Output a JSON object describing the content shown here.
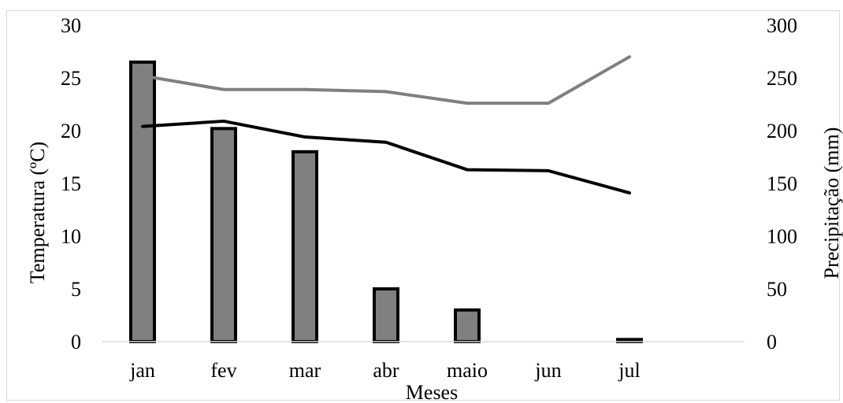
{
  "chart_data": {
    "type": "bar",
    "categories": [
      "jan",
      "fev",
      "mar",
      "abr",
      "maio",
      "jun",
      "jul"
    ],
    "xlabel": "Meses",
    "ylabel": "Temperatura (ºC)",
    "y2label": "Precipitação (mm)",
    "ylim": [
      0,
      30
    ],
    "y2lim": [
      0,
      300
    ],
    "yticks": [
      "0",
      "5",
      "10",
      "15",
      "20",
      "25",
      "30"
    ],
    "y2ticks": [
      "0",
      "50",
      "100",
      "150",
      "200",
      "250",
      "300"
    ],
    "grid": false,
    "series": [
      {
        "kind": "bar",
        "axis": "right",
        "color": "#808080",
        "edge_color": "#000000",
        "values": [
          265,
          202,
          180,
          50,
          30,
          0,
          2
        ]
      },
      {
        "kind": "line",
        "axis": "left",
        "color": "#7f7f7f",
        "values": [
          25.2,
          23.9,
          23.9,
          23.7,
          22.6,
          22.6,
          27.0
        ]
      },
      {
        "kind": "line",
        "axis": "left",
        "color": "#000000",
        "values": [
          20.4,
          20.9,
          19.4,
          18.9,
          16.3,
          16.2,
          14.1
        ]
      }
    ]
  }
}
